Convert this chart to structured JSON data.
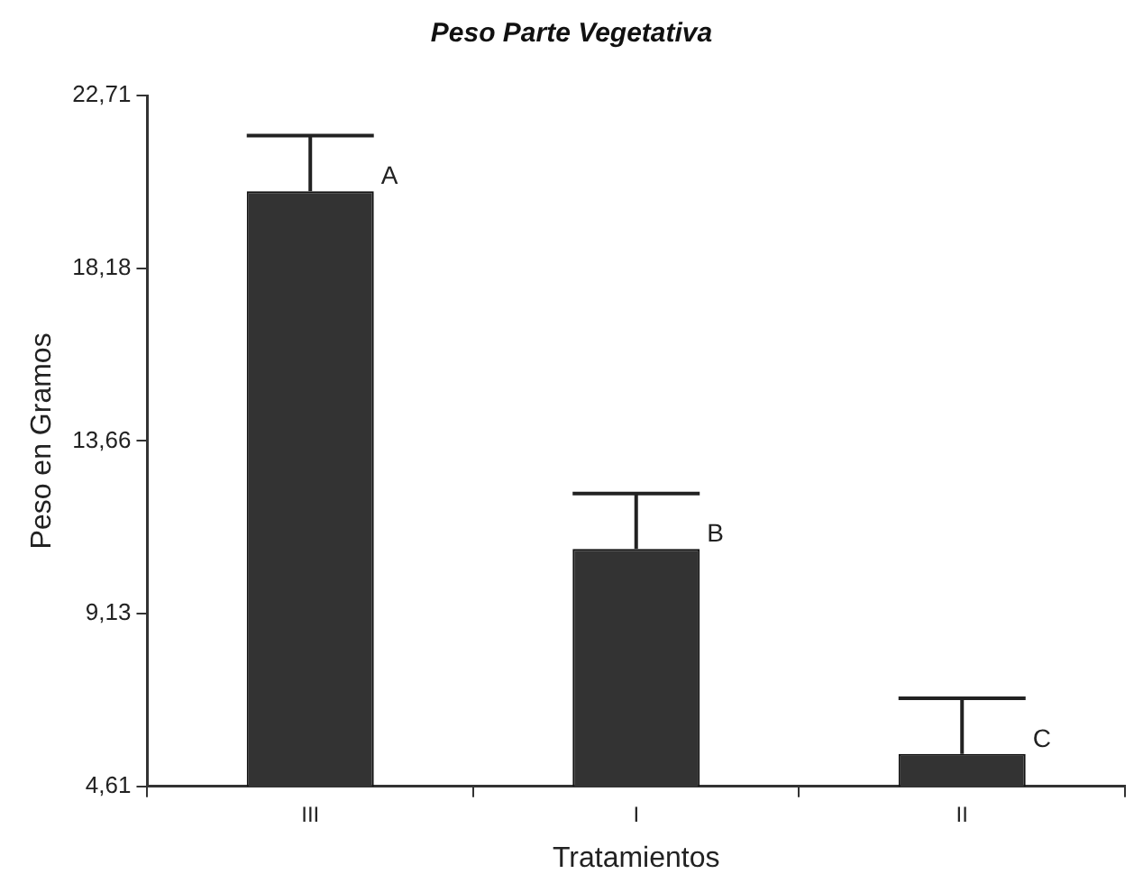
{
  "chart_data": {
    "type": "bar",
    "title": "Peso Parte Vegetativa",
    "xlabel": "Tratamientos",
    "ylabel": "Peso en Gramos",
    "categories": [
      "III",
      "I",
      "II"
    ],
    "values": [
      20.2,
      10.83,
      5.46
    ],
    "errors": [
      [
        20.2,
        21.66
      ],
      [
        10.83,
        12.28
      ],
      [
        5.46,
        6.92
      ]
    ],
    "color": "#333333",
    "ylim": [
      4.61,
      22.71
    ],
    "yticks": [
      {
        "value": 4.61,
        "label": "4,61"
      },
      {
        "value": 9.13,
        "label": "9,13"
      },
      {
        "value": 13.66,
        "label": "13,66"
      },
      {
        "value": 18.18,
        "label": "18,18"
      },
      {
        "value": 22.71,
        "label": "22,71"
      }
    ],
    "grid": false,
    "legend": false,
    "annotations": [
      {
        "text": "A",
        "x": "III",
        "y": 20.2
      },
      {
        "text": "B",
        "x": "I",
        "y": 10.83
      },
      {
        "text": "C",
        "x": "II",
        "y": 5.46
      }
    ]
  }
}
